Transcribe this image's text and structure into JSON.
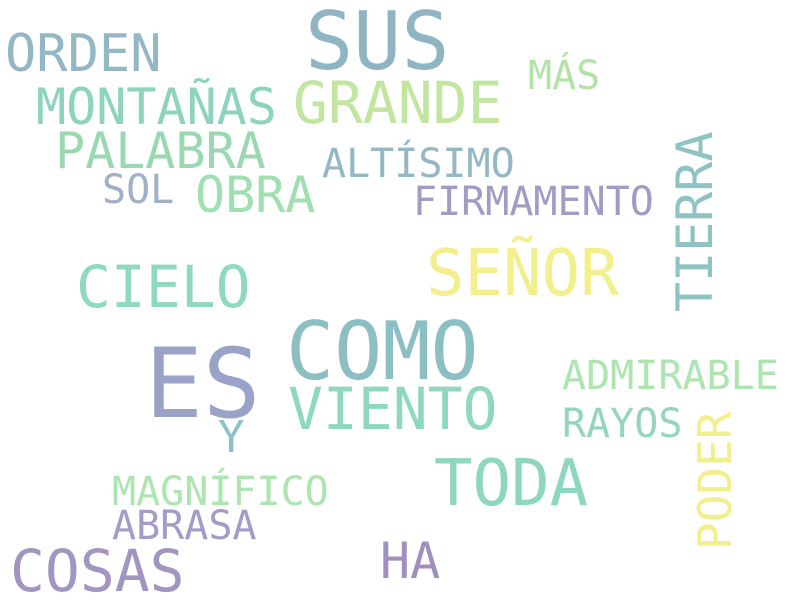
{
  "words": [
    {
      "text": "SUS",
      "color": "#8fb5c3"
    },
    {
      "text": "ORDEN",
      "color": "#93b7c4"
    },
    {
      "text": "MÁS",
      "color": "#b3e2a6"
    },
    {
      "text": "MONTAÑAS",
      "color": "#8ed3bd"
    },
    {
      "text": "GRANDE",
      "color": "#c2e6a0"
    },
    {
      "text": "PALABRA",
      "color": "#9ad8b1"
    },
    {
      "text": "ALTÍSIMO",
      "color": "#93b7c4"
    },
    {
      "text": "TIERRA",
      "color": "#8fc3c3"
    },
    {
      "text": "SOL",
      "color": "#9fb0c8"
    },
    {
      "text": "OBRA",
      "color": "#a0dfb1"
    },
    {
      "text": "FIRMAMENTO",
      "color": "#a19cc3"
    },
    {
      "text": "SEÑOR",
      "color": "#f2ef8c"
    },
    {
      "text": "CIELO",
      "color": "#8fd9c0"
    },
    {
      "text": "COMO",
      "color": "#8cbfc3"
    },
    {
      "text": "ES",
      "color": "#9aa2c8"
    },
    {
      "text": "ADMIRABLE",
      "color": "#ade5b0"
    },
    {
      "text": "VIENTO",
      "color": "#8fd8c0"
    },
    {
      "text": "RAYOS",
      "color": "#95d4bf"
    },
    {
      "text": "Y",
      "color": "#8fc0c6"
    },
    {
      "text": "PODER",
      "color": "#f3ef8e"
    },
    {
      "text": "TODA",
      "color": "#8dd6bf"
    },
    {
      "text": "MAGNÍFICO",
      "color": "#ade5b0"
    },
    {
      "text": "ABRASA",
      "color": "#a59bc7"
    },
    {
      "text": "COSAS",
      "color": "#a395c2"
    },
    {
      "text": "HA",
      "color": "#a08fbf"
    }
  ]
}
